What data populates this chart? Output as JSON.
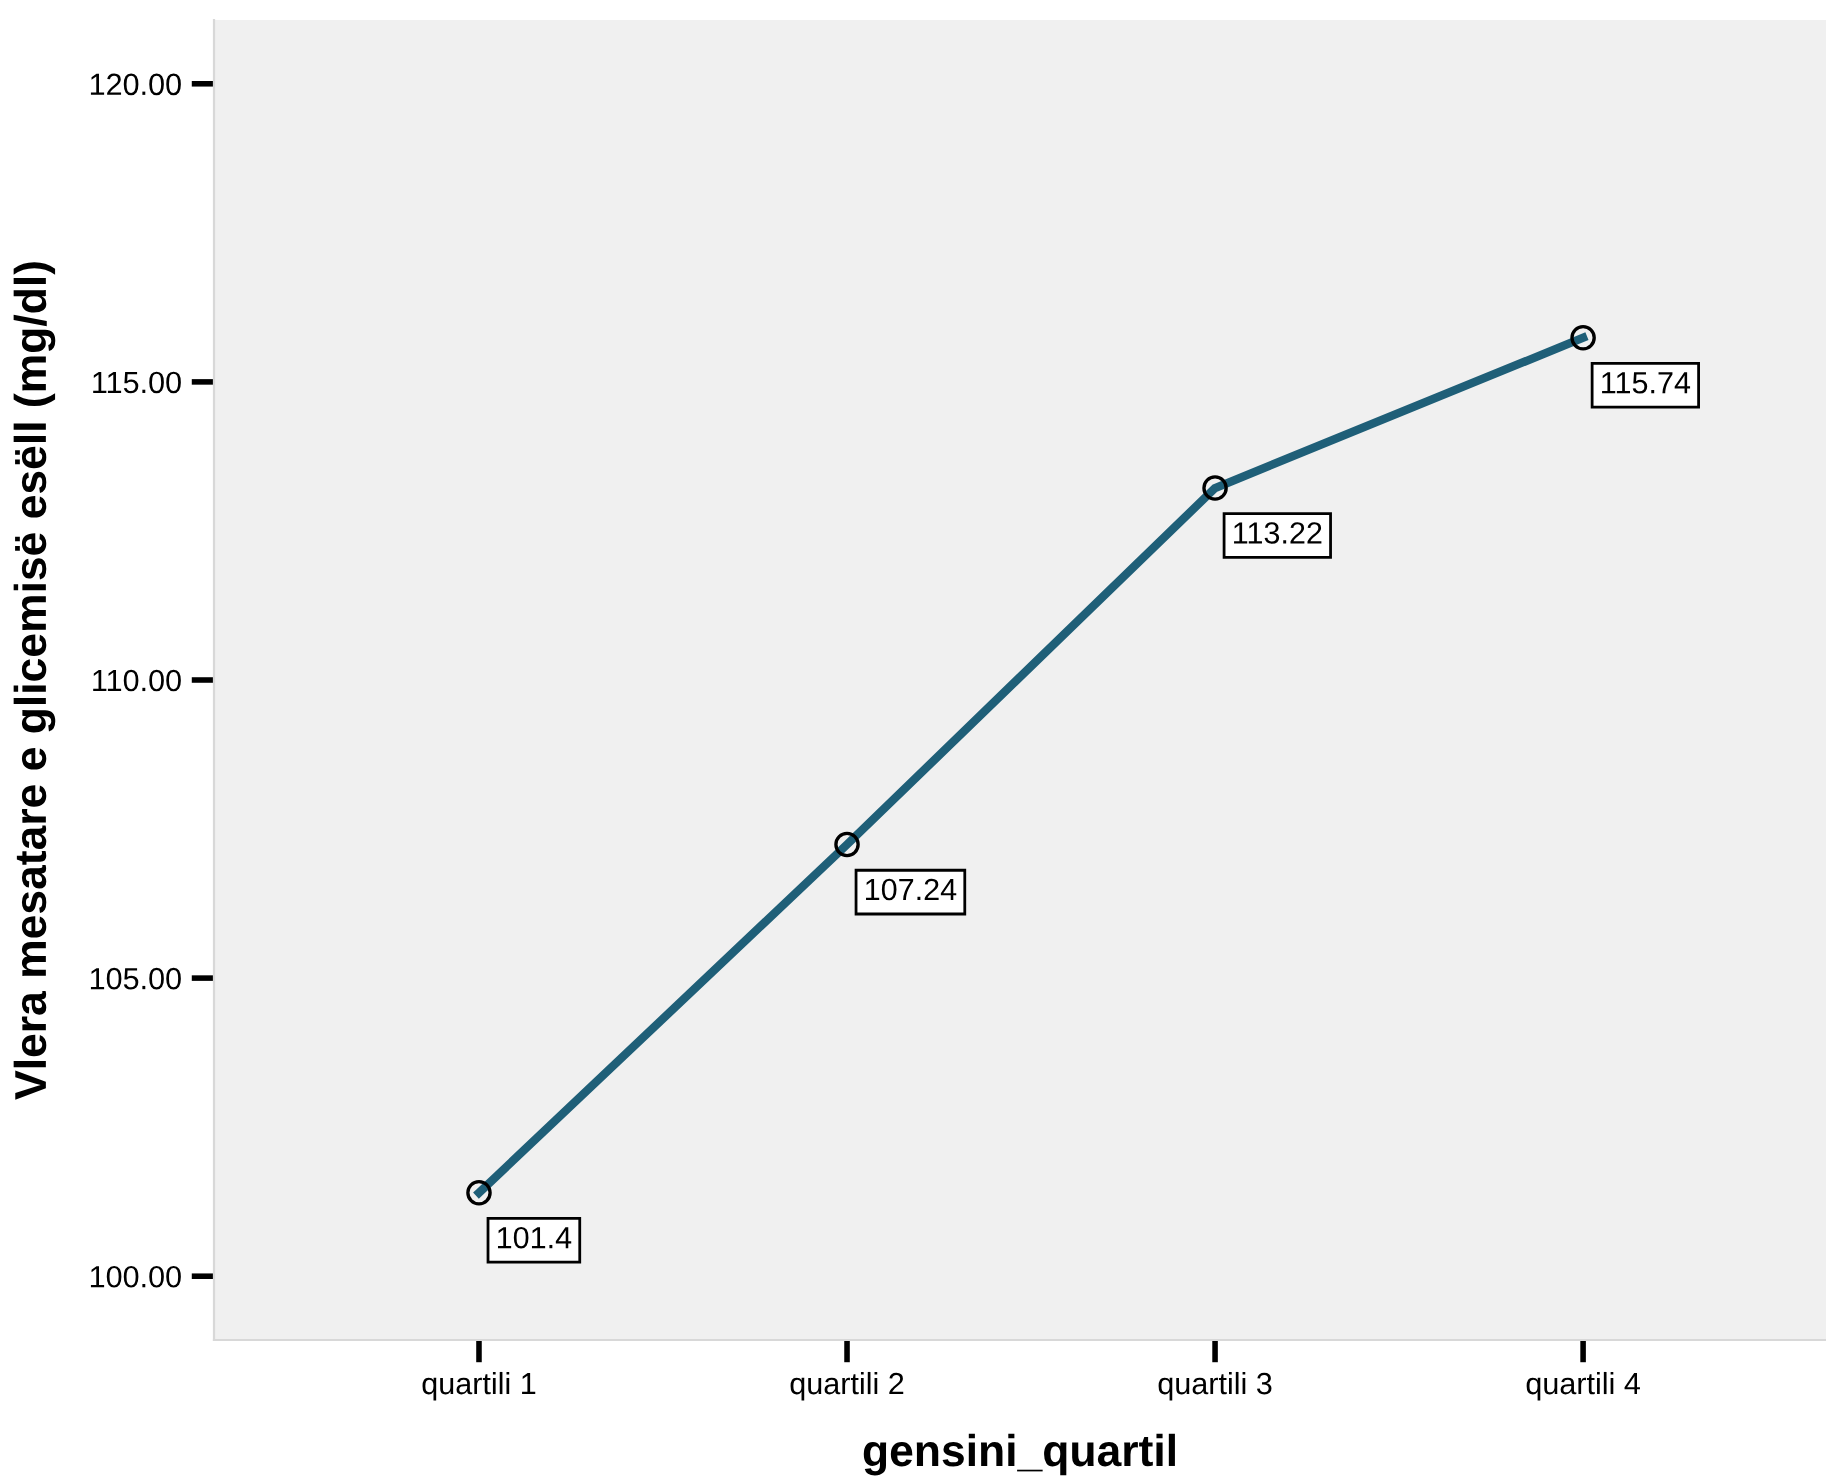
{
  "chart_data": {
    "type": "line",
    "xlabel": "gensini_quartil",
    "ylabel": "Vlera mesatare e glicemisë esëll (mg/dl)",
    "categories": [
      "quartili 1",
      "quartili 2",
      "quartili 3",
      "quartili 4"
    ],
    "series": [
      {
        "color": "#1f5f78",
        "values": [
          101.4,
          107.24,
          113.22,
          115.74
        ]
      }
    ],
    "ylim": [
      98.93,
      121.07
    ],
    "yticks": [
      {
        "value": 100,
        "label": "100.00"
      },
      {
        "value": 105,
        "label": "105.00"
      },
      {
        "value": 110,
        "label": "110.00"
      },
      {
        "value": 115,
        "label": "115.00"
      },
      {
        "value": 120,
        "label": "120.00"
      }
    ],
    "data_labels": true,
    "marker": "circle",
    "line_style": "solid",
    "grid": false,
    "legend": false
  }
}
